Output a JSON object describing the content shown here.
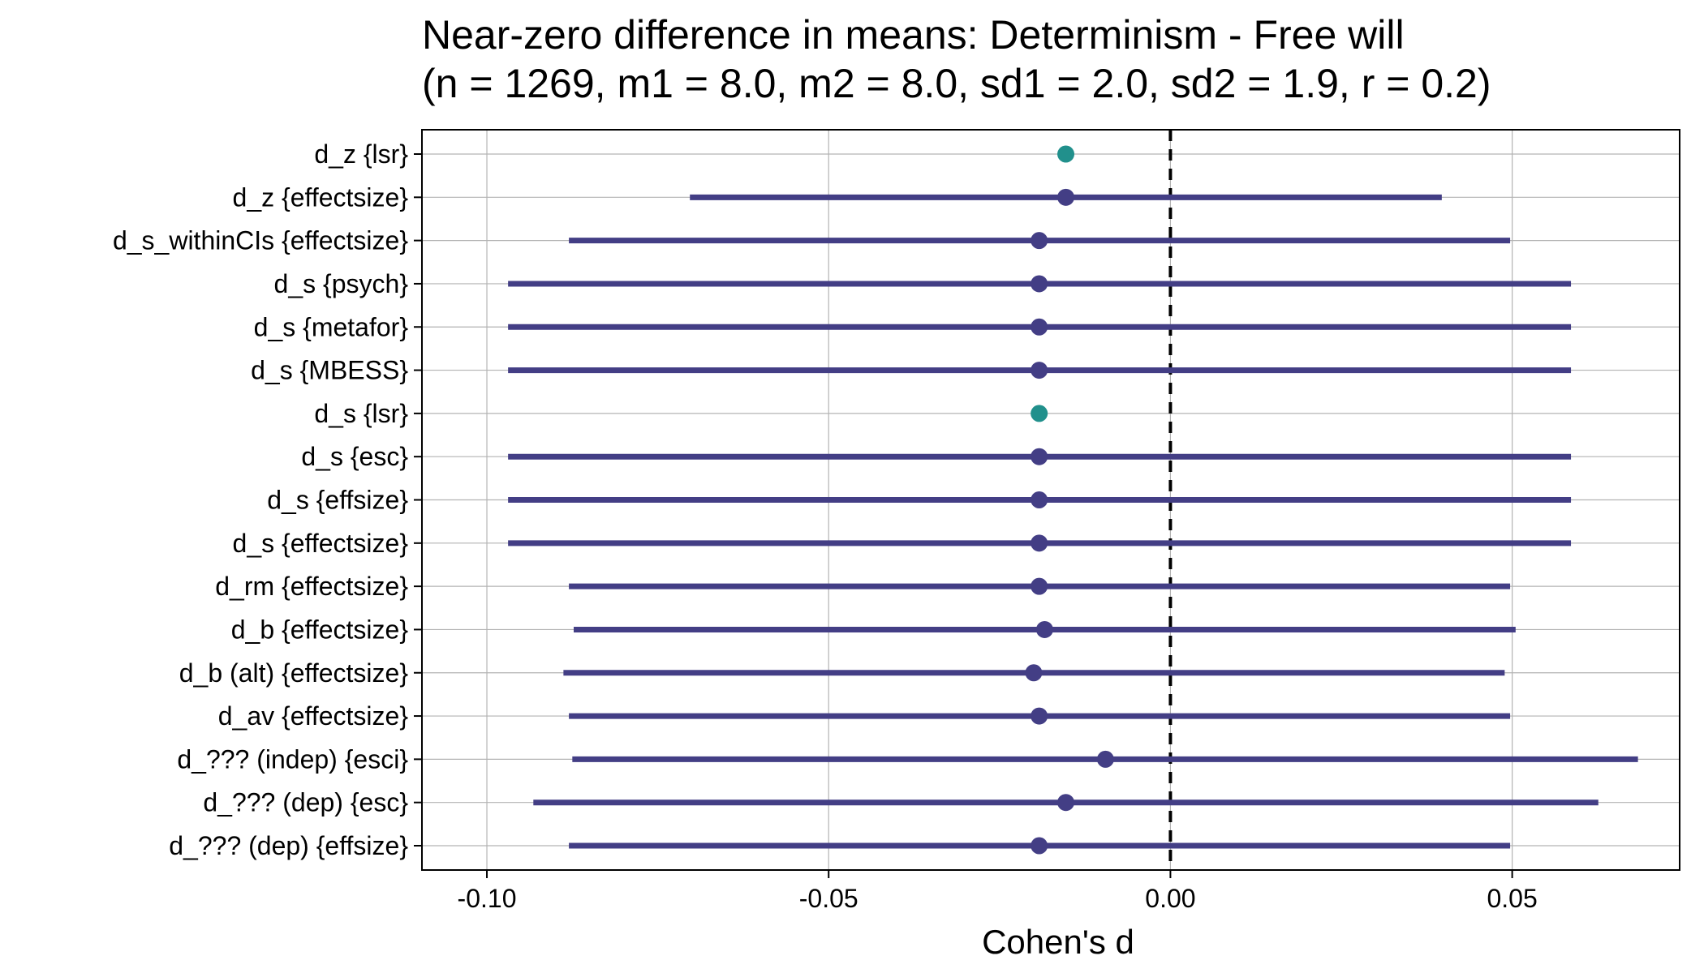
{
  "chart_data": {
    "type": "forest",
    "title": "Near-zero difference in means: Determinism - Free will",
    "subtitle": "(n = 1269, m1 = 8.0, m2 = 8.0, sd1 = 2.0, sd2 = 1.9, r = 0.2)",
    "xlabel": "Cohen's d",
    "ylabel": "",
    "xlim": [
      -0.1095,
      0.0745
    ],
    "xticks": [
      -0.1,
      -0.05,
      0.0,
      0.05
    ],
    "xtick_labels": [
      "-0.10",
      "-0.05",
      "0.00",
      "0.05"
    ],
    "reference_line": 0,
    "grid": true,
    "colors": {
      "interval": "#433e85",
      "point_only": "#21908c",
      "reference": "#000000"
    },
    "rows": [
      {
        "label": "d_z {lsr}",
        "estimate": -0.0153,
        "lower": null,
        "upper": null
      },
      {
        "label": "d_z {effectsize}",
        "estimate": -0.0153,
        "lower": -0.0703,
        "upper": 0.0397
      },
      {
        "label": "d_s_withinCIs {effectsize}",
        "estimate": -0.0192,
        "lower": -0.088,
        "upper": 0.0497
      },
      {
        "label": "d_s {psych}",
        "estimate": -0.0192,
        "lower": -0.0969,
        "upper": 0.0586
      },
      {
        "label": "d_s {metafor}",
        "estimate": -0.0192,
        "lower": -0.0969,
        "upper": 0.0586
      },
      {
        "label": "d_s {MBESS}",
        "estimate": -0.0192,
        "lower": -0.0969,
        "upper": 0.0586
      },
      {
        "label": "d_s {lsr}",
        "estimate": -0.0192,
        "lower": null,
        "upper": null
      },
      {
        "label": "d_s {esc}",
        "estimate": -0.0192,
        "lower": -0.0969,
        "upper": 0.0586
      },
      {
        "label": "d_s {effsize}",
        "estimate": -0.0192,
        "lower": -0.0969,
        "upper": 0.0586
      },
      {
        "label": "d_s {effectsize}",
        "estimate": -0.0192,
        "lower": -0.0969,
        "upper": 0.0586
      },
      {
        "label": "d_rm {effectsize}",
        "estimate": -0.0192,
        "lower": -0.088,
        "upper": 0.0497
      },
      {
        "label": "d_b {effectsize}",
        "estimate": -0.0184,
        "lower": -0.0873,
        "upper": 0.0505
      },
      {
        "label": "d_b (alt) {effectsize}",
        "estimate": -0.02,
        "lower": -0.0888,
        "upper": 0.0489
      },
      {
        "label": "d_av {effectsize}",
        "estimate": -0.0192,
        "lower": -0.088,
        "upper": 0.0497
      },
      {
        "label": "d_??? (indep) {esci}",
        "estimate": -0.0095,
        "lower": -0.0875,
        "upper": 0.0684
      },
      {
        "label": "d_??? (dep) {esc}",
        "estimate": -0.0153,
        "lower": -0.0932,
        "upper": 0.0626
      },
      {
        "label": "d_??? (dep) {effsize}",
        "estimate": -0.0192,
        "lower": -0.088,
        "upper": 0.0497
      }
    ]
  }
}
